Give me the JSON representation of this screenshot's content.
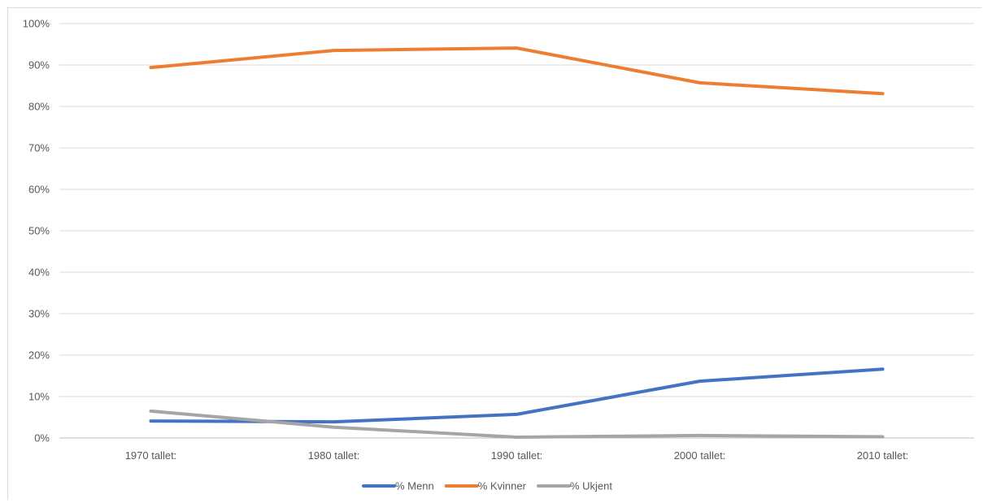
{
  "chart_data": {
    "type": "line",
    "title": "",
    "xlabel": "",
    "ylabel": "",
    "categories": [
      "1970 tallet:",
      "1980 tallet:",
      "1990 tallet:",
      "2000 tallet:",
      "2010 tallet:"
    ],
    "ylim": [
      0,
      100
    ],
    "yticks": [
      "0%",
      "10%",
      "20%",
      "30%",
      "40%",
      "50%",
      "60%",
      "70%",
      "80%",
      "90%",
      "100%"
    ],
    "grid": true,
    "legend_position": "bottom",
    "series": [
      {
        "name": "% Menn",
        "color": "#4472c4",
        "values": [
          4.1,
          3.9,
          5.7,
          13.7,
          16.6
        ]
      },
      {
        "name": "% Kvinner",
        "color": "#ed7d31",
        "values": [
          89.4,
          93.5,
          94.1,
          85.7,
          83.1
        ]
      },
      {
        "name": "% Ukjent",
        "color": "#a5a5a5",
        "values": [
          6.5,
          2.6,
          0.2,
          0.6,
          0.3
        ]
      }
    ]
  }
}
